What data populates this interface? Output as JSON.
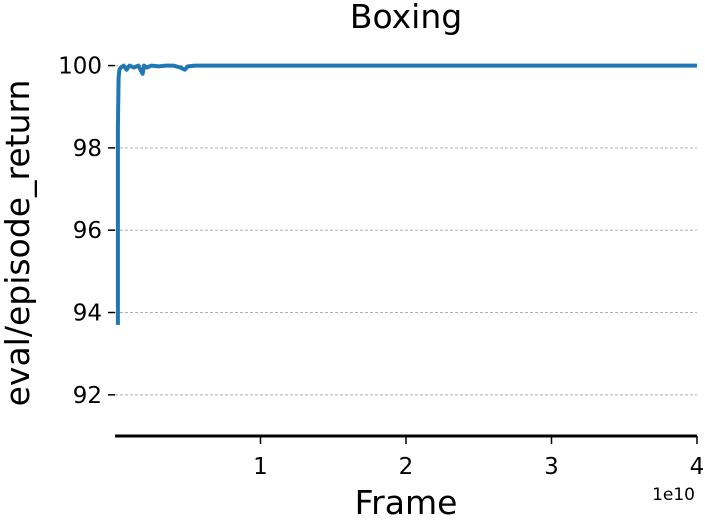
{
  "chart_data": {
    "type": "line",
    "title": "Boxing",
    "xlabel": "Frame",
    "ylabel": "eval/episode_return",
    "x_offset_label": "1e10",
    "xlim": [
      0,
      4
    ],
    "ylim": [
      91,
      100.5
    ],
    "x_ticks": [
      1,
      2,
      3,
      4
    ],
    "x_tick_labels": [
      "1",
      "2",
      "3",
      "4"
    ],
    "y_ticks": [
      92,
      94,
      96,
      98,
      100
    ],
    "y_tick_labels": [
      "92",
      "94",
      "96",
      "98",
      "100"
    ],
    "grid": "horizontal dashed",
    "series": [
      {
        "color": "#1f77b4",
        "x": [
          0.02,
          0.02,
          0.025,
          0.03,
          0.04,
          0.06,
          0.08,
          0.1,
          0.13,
          0.16,
          0.19,
          0.2,
          0.22,
          0.25,
          0.3,
          0.35,
          0.4,
          0.45,
          0.48,
          0.5,
          0.55,
          0.6,
          0.7,
          0.8,
          1.0,
          1.5,
          2.0,
          2.5,
          3.0,
          3.5,
          4.0
        ],
        "y": [
          93.7,
          98.5,
          99.7,
          99.9,
          99.95,
          100,
          99.9,
          100,
          99.95,
          100,
          99.8,
          100,
          99.95,
          100,
          99.98,
          100,
          100,
          99.95,
          99.9,
          99.98,
          100,
          100,
          100,
          100,
          100,
          100,
          100,
          100,
          100,
          100,
          100
        ]
      }
    ]
  }
}
